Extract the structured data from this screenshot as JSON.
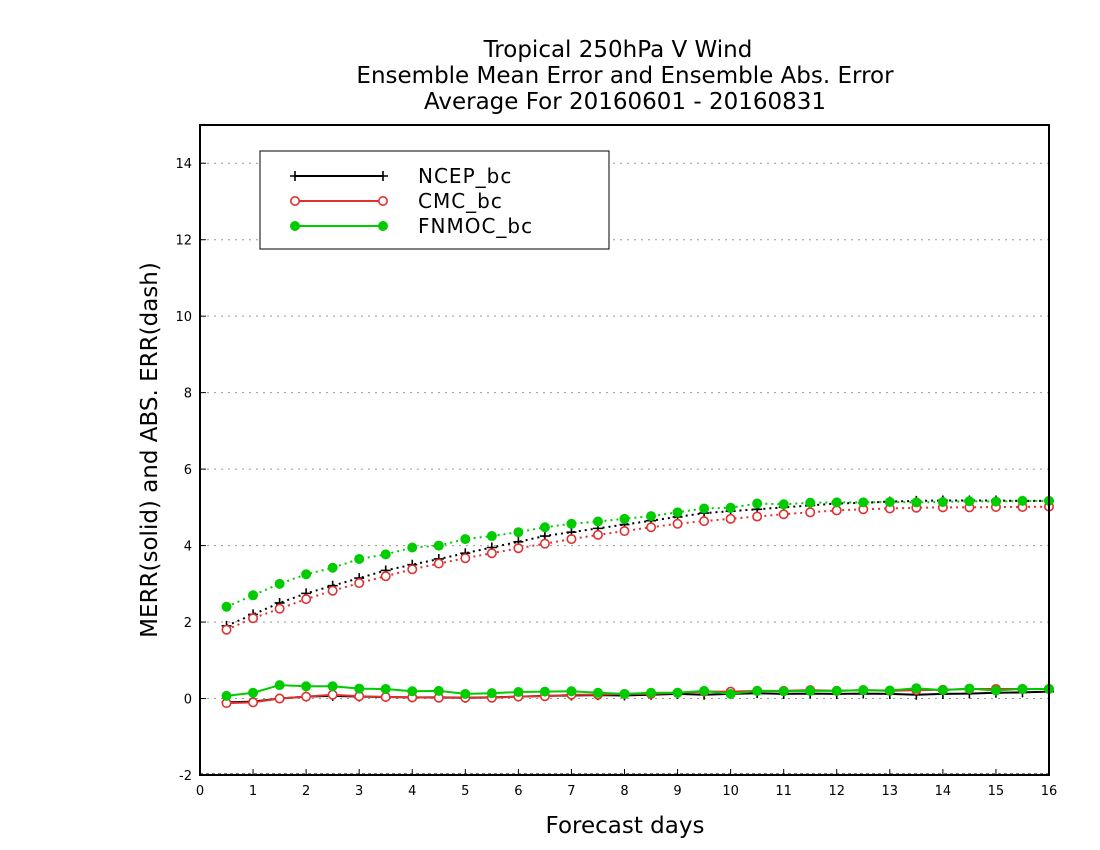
{
  "chart_data": {
    "type": "line",
    "title_lines": [
      "Tropical 250hPa V Wind",
      "Ensemble Mean Error and Ensemble Abs. Error",
      "Average For 20160601 - 20160831"
    ],
    "xlabel": "Forecast days",
    "ylabel": "MERR(solid) and ABS. ERR(dash)",
    "xlim": [
      0,
      16
    ],
    "ylim": [
      -2,
      15
    ],
    "x_ticks": [
      "0",
      "1",
      "2",
      "3",
      "4",
      "5",
      "6",
      "7",
      "8",
      "9",
      "10",
      "11",
      "12",
      "13",
      "14",
      "15",
      "16"
    ],
    "y_ticks": [
      "-2",
      "0",
      "2",
      "4",
      "6",
      "8",
      "10",
      "12",
      "14"
    ],
    "grid": "horizontal dotted",
    "legend_position": "top-left",
    "legend": [
      {
        "name": "NCEP_bc",
        "color": "#000000",
        "marker": "plus"
      },
      {
        "name": "CMC_bc",
        "color": "#e03030",
        "marker": "open-circle"
      },
      {
        "name": "FNMOC_bc",
        "color": "#00cc00",
        "marker": "filled-circle"
      }
    ],
    "x": [
      0.5,
      1,
      1.5,
      2,
      2.5,
      3,
      3.5,
      4,
      4.5,
      5,
      5.5,
      6,
      6.5,
      7,
      7.5,
      8,
      8.5,
      9,
      9.5,
      10,
      10.5,
      11,
      11.5,
      12,
      12.5,
      13,
      13.5,
      14,
      14.5,
      15,
      15.5,
      16
    ],
    "series": [
      {
        "name": "NCEP_bc",
        "style": "solid",
        "color": "#000000",
        "marker": "plus",
        "values": [
          -0.1,
          -0.08,
          0.0,
          0.05,
          0.07,
          0.05,
          0.04,
          0.03,
          0.03,
          0.02,
          0.03,
          0.05,
          0.07,
          0.08,
          0.09,
          0.08,
          0.1,
          0.12,
          0.1,
          0.12,
          0.14,
          0.12,
          0.13,
          0.12,
          0.13,
          0.12,
          0.1,
          0.12,
          0.13,
          0.15,
          0.16,
          0.18
        ]
      },
      {
        "name": "CMC_bc",
        "style": "solid",
        "color": "#e03030",
        "marker": "open-circle",
        "values": [
          -0.12,
          -0.1,
          0.0,
          0.05,
          0.1,
          0.06,
          0.04,
          0.03,
          0.02,
          0.02,
          0.02,
          0.05,
          0.06,
          0.1,
          0.1,
          0.12,
          0.12,
          0.15,
          0.18,
          0.18,
          0.2,
          0.2,
          0.22,
          0.2,
          0.22,
          0.2,
          0.22,
          0.23,
          0.25,
          0.25,
          0.25,
          0.25
        ]
      },
      {
        "name": "FNMOC_bc",
        "style": "solid",
        "color": "#00cc00",
        "marker": "filled-circle",
        "values": [
          0.07,
          0.15,
          0.35,
          0.32,
          0.32,
          0.26,
          0.25,
          0.19,
          0.2,
          0.12,
          0.14,
          0.17,
          0.18,
          0.19,
          0.15,
          0.12,
          0.15,
          0.15,
          0.2,
          0.12,
          0.2,
          0.19,
          0.2,
          0.2,
          0.22,
          0.21,
          0.27,
          0.22,
          0.26,
          0.21,
          0.25,
          0.25
        ]
      },
      {
        "name": "NCEP_bc",
        "style": "dotted",
        "color": "#000000",
        "marker": "plus",
        "values": [
          1.9,
          2.2,
          2.5,
          2.75,
          2.95,
          3.15,
          3.35,
          3.5,
          3.65,
          3.8,
          3.95,
          4.1,
          4.25,
          4.35,
          4.45,
          4.55,
          4.65,
          4.75,
          4.85,
          4.9,
          4.95,
          5.0,
          5.05,
          5.1,
          5.12,
          5.15,
          5.17,
          5.18,
          5.18,
          5.18,
          5.17,
          5.17
        ]
      },
      {
        "name": "CMC_bc",
        "style": "dotted",
        "color": "#e03030",
        "marker": "open-circle",
        "values": [
          1.8,
          2.1,
          2.35,
          2.6,
          2.82,
          3.02,
          3.2,
          3.38,
          3.53,
          3.67,
          3.8,
          3.93,
          4.05,
          4.17,
          4.28,
          4.38,
          4.48,
          4.57,
          4.64,
          4.7,
          4.76,
          4.82,
          4.87,
          4.92,
          4.95,
          4.97,
          4.99,
          5.0,
          5.0,
          5.01,
          5.01,
          5.02
        ]
      },
      {
        "name": "FNMOC_bc",
        "style": "dotted",
        "color": "#00cc00",
        "marker": "filled-circle",
        "values": [
          2.4,
          2.7,
          3.0,
          3.25,
          3.42,
          3.65,
          3.77,
          3.95,
          4.0,
          4.17,
          4.25,
          4.35,
          4.48,
          4.57,
          4.63,
          4.7,
          4.77,
          4.87,
          4.97,
          4.99,
          5.1,
          5.08,
          5.12,
          5.13,
          5.13,
          5.14,
          5.13,
          5.14,
          5.16,
          5.15,
          5.17,
          5.17
        ]
      }
    ]
  }
}
